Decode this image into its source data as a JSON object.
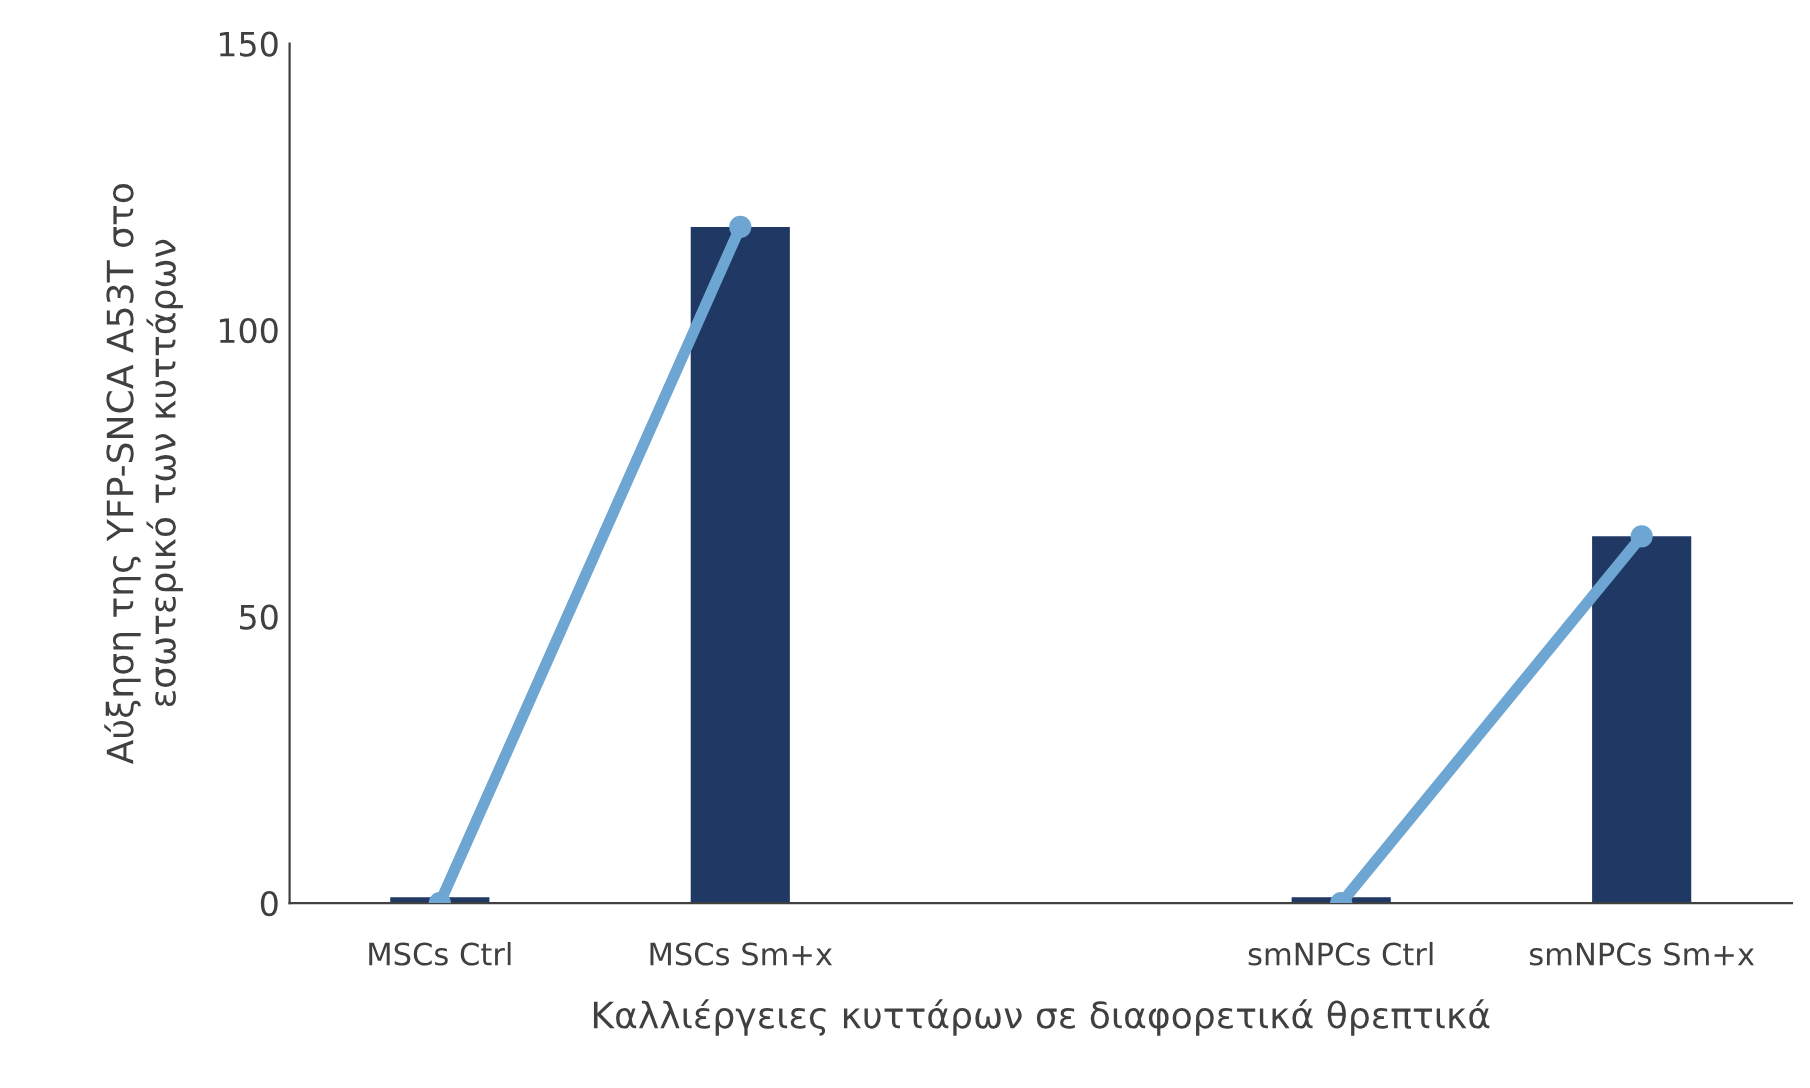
{
  "chart_data": {
    "type": "bar",
    "xlabel": "Καλλιέργειες κυττάρων σε διαφορετικά θρεπτικά",
    "ylabel": "Αύξηση της YFP-SNCA A53T στο\nεσωτερικό των κυττάρων",
    "categories": [
      "MSCs Ctrl",
      "MSCs Sm+x",
      null,
      "smNPCs Ctrl",
      "smNPCs Sm+x"
    ],
    "series": [
      {
        "color": "#203864",
        "values": [
          1,
          118,
          null,
          1,
          64
        ]
      },
      {
        "type": "line",
        "color": "#6ea6d3",
        "values": [
          0,
          118,
          null,
          0,
          64
        ],
        "marker": "circle",
        "line_style": "solid"
      }
    ],
    "ylim": [
      0,
      150
    ],
    "yticks": [
      0,
      50,
      100,
      150
    ],
    "grid": false,
    "legend": false
  }
}
